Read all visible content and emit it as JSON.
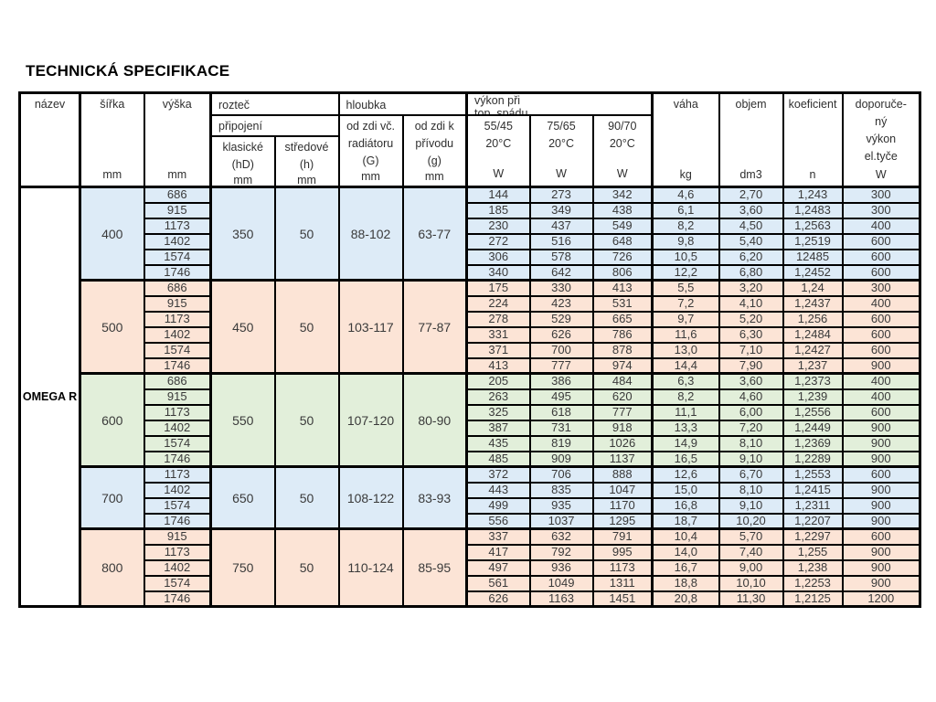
{
  "page_title": "TECHNICKÁ SPECIFIKACE",
  "table": {
    "product_name": "OMEGA R",
    "header": {
      "nazev": {
        "label": "název",
        "unit": ""
      },
      "sirka": {
        "label": "šířka",
        "unit": "mm"
      },
      "vyska": {
        "label": "výška",
        "unit": "mm"
      },
      "roztec": {
        "label": "rozteč"
      },
      "pripojeni": {
        "label": "připojení"
      },
      "klasicke": {
        "label": "klasické\n(hD)",
        "unit": "mm"
      },
      "stredove": {
        "label": "středové\n(h)",
        "unit": "mm"
      },
      "hloubka": {
        "label": "hloubka"
      },
      "od_zdi_radiator": {
        "label": "od zdi  vč.\nradiátoru\n(G)",
        "unit": "mm"
      },
      "od_zdi_privod": {
        "label": "od zdi  k\npřívodu\n(g)",
        "unit": "mm"
      },
      "vykon_spad": {
        "label": "výkon při\ntop. spádu"
      },
      "t5545": {
        "label": "55/45\n20°C",
        "unit": "W"
      },
      "t7565": {
        "label": "75/65\n20°C",
        "unit": "W"
      },
      "t9070": {
        "label": "90/70\n20°C",
        "unit": "W"
      },
      "vaha": {
        "label": "váha",
        "unit": "kg"
      },
      "objem": {
        "label": "objem",
        "unit": "dm3"
      },
      "koeficient": {
        "label": "koeficient",
        "unit": "n"
      },
      "doporuceny": {
        "label": "doporuče-\nný\nvýkon\nel.tyče",
        "unit": "W"
      }
    },
    "colors": {
      "blue": "#ddebf7",
      "peach": "#fce4d6",
      "green": "#e2efda",
      "border": "#000000"
    },
    "groups": [
      {
        "sirka": "400",
        "klasicke": "350",
        "stredove": "50",
        "g_big": "88-102",
        "g_small": "63-77",
        "color": "#ddebf7",
        "rows": [
          {
            "vyska": "686",
            "w5545": "144",
            "w7565": "273",
            "w9070": "342",
            "vaha": "4,6",
            "objem": "2,70",
            "koef": "1,243",
            "el": "300"
          },
          {
            "vyska": "915",
            "w5545": "185",
            "w7565": "349",
            "w9070": "438",
            "vaha": "6,1",
            "objem": "3,60",
            "koef": "1,2483",
            "el": "300"
          },
          {
            "vyska": "1173",
            "w5545": "230",
            "w7565": "437",
            "w9070": "549",
            "vaha": "8,2",
            "objem": "4,50",
            "koef": "1,2563",
            "el": "400"
          },
          {
            "vyska": "1402",
            "w5545": "272",
            "w7565": "516",
            "w9070": "648",
            "vaha": "9,8",
            "objem": "5,40",
            "koef": "1,2519",
            "el": "600"
          },
          {
            "vyska": "1574",
            "w5545": "306",
            "w7565": "578",
            "w9070": "726",
            "vaha": "10,5",
            "objem": "6,20",
            "koef": "12485",
            "el": "600"
          },
          {
            "vyska": "1746",
            "w5545": "340",
            "w7565": "642",
            "w9070": "806",
            "vaha": "12,2",
            "objem": "6,80",
            "koef": "1,2452",
            "el": "600"
          }
        ]
      },
      {
        "sirka": "500",
        "klasicke": "450",
        "stredove": "50",
        "g_big": "103-117",
        "g_small": "77-87",
        "color": "#fce4d6",
        "rows": [
          {
            "vyska": "686",
            "w5545": "175",
            "w7565": "330",
            "w9070": "413",
            "vaha": "5,5",
            "objem": "3,20",
            "koef": "1,24",
            "el": "300"
          },
          {
            "vyska": "915",
            "w5545": "224",
            "w7565": "423",
            "w9070": "531",
            "vaha": "7,2",
            "objem": "4,10",
            "koef": "1,2437",
            "el": "400"
          },
          {
            "vyska": "1173",
            "w5545": "278",
            "w7565": "529",
            "w9070": "665",
            "vaha": "9,7",
            "objem": "5,20",
            "koef": "1,256",
            "el": "600"
          },
          {
            "vyska": "1402",
            "w5545": "331",
            "w7565": "626",
            "w9070": "786",
            "vaha": "11,6",
            "objem": "6,30",
            "koef": "1,2484",
            "el": "600"
          },
          {
            "vyska": "1574",
            "w5545": "371",
            "w7565": "700",
            "w9070": "878",
            "vaha": "13,0",
            "objem": "7,10",
            "koef": "1,2427",
            "el": "600"
          },
          {
            "vyska": "1746",
            "w5545": "413",
            "w7565": "777",
            "w9070": "974",
            "vaha": "14,4",
            "objem": "7,90",
            "koef": "1,237",
            "el": "900"
          }
        ]
      },
      {
        "sirka": "600",
        "klasicke": "550",
        "stredove": "50",
        "g_big": "107-120",
        "g_small": "80-90",
        "color": "#e2efda",
        "rows": [
          {
            "vyska": "686",
            "w5545": "205",
            "w7565": "386",
            "w9070": "484",
            "vaha": "6,3",
            "objem": "3,60",
            "koef": "1,2373",
            "el": "400"
          },
          {
            "vyska": "915",
            "w5545": "263",
            "w7565": "495",
            "w9070": "620",
            "vaha": "8,2",
            "objem": "4,60",
            "koef": "1,239",
            "el": "400"
          },
          {
            "vyska": "1173",
            "w5545": "325",
            "w7565": "618",
            "w9070": "777",
            "vaha": "11,1",
            "objem": "6,00",
            "koef": "1,2556",
            "el": "600"
          },
          {
            "vyska": "1402",
            "w5545": "387",
            "w7565": "731",
            "w9070": "918",
            "vaha": "13,3",
            "objem": "7,20",
            "koef": "1,2449",
            "el": "900"
          },
          {
            "vyska": "1574",
            "w5545": "435",
            "w7565": "819",
            "w9070": "1026",
            "vaha": "14,9",
            "objem": "8,10",
            "koef": "1,2369",
            "el": "900"
          },
          {
            "vyska": "1746",
            "w5545": "485",
            "w7565": "909",
            "w9070": "1137",
            "vaha": "16,5",
            "objem": "9,10",
            "koef": "1,2289",
            "el": "900"
          }
        ]
      },
      {
        "sirka": "700",
        "klasicke": "650",
        "stredove": "50",
        "g_big": "108-122",
        "g_small": "83-93",
        "color": "#ddebf7",
        "rows": [
          {
            "vyska": "1173",
            "w5545": "372",
            "w7565": "706",
            "w9070": "888",
            "vaha": "12,6",
            "objem": "6,70",
            "koef": "1,2553",
            "el": "600"
          },
          {
            "vyska": "1402",
            "w5545": "443",
            "w7565": "835",
            "w9070": "1047",
            "vaha": "15,0",
            "objem": "8,10",
            "koef": "1,2415",
            "el": "900"
          },
          {
            "vyska": "1574",
            "w5545": "499",
            "w7565": "935",
            "w9070": "1170",
            "vaha": "16,8",
            "objem": "9,10",
            "koef": "1,2311",
            "el": "900"
          },
          {
            "vyska": "1746",
            "w5545": "556",
            "w7565": "1037",
            "w9070": "1295",
            "vaha": "18,7",
            "objem": "10,20",
            "koef": "1,2207",
            "el": "900"
          }
        ]
      },
      {
        "sirka": "800",
        "klasicke": "750",
        "stredove": "50",
        "g_big": "110-124",
        "g_small": "85-95",
        "color": "#fce4d6",
        "rows": [
          {
            "vyska": "915",
            "w5545": "337",
            "w7565": "632",
            "w9070": "791",
            "vaha": "10,4",
            "objem": "5,70",
            "koef": "1,2297",
            "el": "600"
          },
          {
            "vyska": "1173",
            "w5545": "417",
            "w7565": "792",
            "w9070": "995",
            "vaha": "14,0",
            "objem": "7,40",
            "koef": "1,255",
            "el": "900"
          },
          {
            "vyska": "1402",
            "w5545": "497",
            "w7565": "936",
            "w9070": "1173",
            "vaha": "16,7",
            "objem": "9,00",
            "koef": "1,238",
            "el": "900"
          },
          {
            "vyska": "1574",
            "w5545": "561",
            "w7565": "1049",
            "w9070": "1311",
            "vaha": "18,8",
            "objem": "10,10",
            "koef": "1,2253",
            "el": "900"
          },
          {
            "vyska": "1746",
            "w5545": "626",
            "w7565": "1163",
            "w9070": "1451",
            "vaha": "20,8",
            "objem": "11,30",
            "koef": "1,2125",
            "el": "1200"
          }
        ]
      }
    ]
  }
}
